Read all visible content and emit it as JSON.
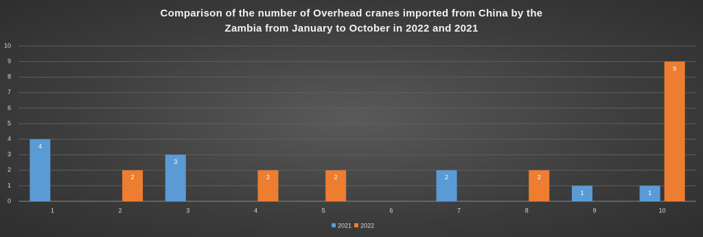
{
  "chart_data": {
    "type": "bar",
    "title": "Comparison of the number of Overhead cranes imported from China by the Zambia from January to October in 2022 and 2021",
    "categories": [
      "1",
      "2",
      "3",
      "4",
      "5",
      "6",
      "7",
      "8",
      "9",
      "10"
    ],
    "series": [
      {
        "name": "2021",
        "color": "#5b9bd5",
        "values": [
          4,
          null,
          3,
          null,
          null,
          null,
          2,
          null,
          1,
          1
        ]
      },
      {
        "name": "2022",
        "color": "#ed7d31",
        "values": [
          null,
          2,
          null,
          2,
          2,
          null,
          null,
          2,
          null,
          9
        ]
      }
    ],
    "ylim": [
      0,
      10
    ],
    "yticks": [
      0,
      1,
      2,
      3,
      4,
      5,
      6,
      7,
      8,
      9,
      10
    ],
    "grid": true,
    "legend": "bottom"
  }
}
